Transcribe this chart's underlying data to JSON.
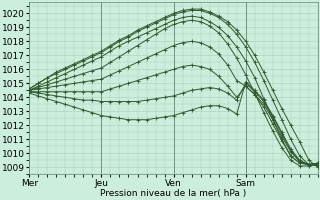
{
  "xlabel": "Pression niveau de la mer( hPa )",
  "bg_color": "#cceedd",
  "grid_color": "#aaccbb",
  "line_color": "#2d5a2d",
  "ylim": [
    1008.5,
    1020.8
  ],
  "yticks": [
    1009,
    1010,
    1011,
    1012,
    1013,
    1014,
    1015,
    1016,
    1017,
    1018,
    1019,
    1020
  ],
  "xlim": [
    0,
    96
  ],
  "xtick_pos": [
    0,
    24,
    48,
    72
  ],
  "xtick_labels": [
    "Mer",
    "Jeu",
    "Ven",
    "Sam"
  ],
  "vline_pos": [
    0,
    24,
    48,
    72
  ],
  "lines": [
    {
      "points": [
        [
          0,
          1014.6
        ],
        [
          3,
          1015.0
        ],
        [
          6,
          1015.4
        ],
        [
          9,
          1015.8
        ],
        [
          12,
          1016.1
        ],
        [
          15,
          1016.4
        ],
        [
          18,
          1016.7
        ],
        [
          21,
          1017.0
        ],
        [
          24,
          1017.3
        ],
        [
          27,
          1017.7
        ],
        [
          30,
          1018.1
        ],
        [
          33,
          1018.4
        ],
        [
          36,
          1018.8
        ],
        [
          39,
          1019.1
        ],
        [
          42,
          1019.4
        ],
        [
          45,
          1019.7
        ],
        [
          48,
          1020.0
        ],
        [
          51,
          1020.2
        ],
        [
          54,
          1020.3
        ],
        [
          57,
          1020.3
        ],
        [
          60,
          1020.1
        ],
        [
          63,
          1019.8
        ],
        [
          66,
          1019.4
        ],
        [
          69,
          1018.8
        ],
        [
          72,
          1018.0
        ],
        [
          75,
          1017.0
        ],
        [
          78,
          1015.8
        ],
        [
          81,
          1014.5
        ],
        [
          84,
          1013.2
        ],
        [
          87,
          1012.0
        ],
        [
          90,
          1010.8
        ],
        [
          93,
          1009.5
        ],
        [
          96,
          1009.0
        ]
      ]
    },
    {
      "points": [
        [
          0,
          1014.6
        ],
        [
          3,
          1015.0
        ],
        [
          6,
          1015.4
        ],
        [
          9,
          1015.7
        ],
        [
          12,
          1016.0
        ],
        [
          15,
          1016.3
        ],
        [
          18,
          1016.6
        ],
        [
          21,
          1016.9
        ],
        [
          24,
          1017.2
        ],
        [
          27,
          1017.6
        ],
        [
          30,
          1018.0
        ],
        [
          33,
          1018.3
        ],
        [
          36,
          1018.7
        ],
        [
          39,
          1019.0
        ],
        [
          42,
          1019.3
        ],
        [
          45,
          1019.6
        ],
        [
          48,
          1019.9
        ],
        [
          51,
          1020.1
        ],
        [
          54,
          1020.2
        ],
        [
          57,
          1020.2
        ],
        [
          60,
          1020.0
        ],
        [
          63,
          1019.7
        ],
        [
          66,
          1019.2
        ],
        [
          69,
          1018.5
        ],
        [
          72,
          1017.6
        ],
        [
          75,
          1016.5
        ],
        [
          78,
          1015.2
        ],
        [
          81,
          1013.8
        ],
        [
          84,
          1012.4
        ],
        [
          87,
          1011.0
        ],
        [
          90,
          1009.8
        ],
        [
          93,
          1009.2
        ],
        [
          96,
          1009.1
        ]
      ]
    },
    {
      "points": [
        [
          0,
          1014.5
        ],
        [
          3,
          1014.8
        ],
        [
          6,
          1015.1
        ],
        [
          9,
          1015.4
        ],
        [
          12,
          1015.7
        ],
        [
          15,
          1016.0
        ],
        [
          18,
          1016.3
        ],
        [
          21,
          1016.6
        ],
        [
          24,
          1016.9
        ],
        [
          27,
          1017.3
        ],
        [
          30,
          1017.7
        ],
        [
          33,
          1018.0
        ],
        [
          36,
          1018.3
        ],
        [
          39,
          1018.6
        ],
        [
          42,
          1018.9
        ],
        [
          45,
          1019.2
        ],
        [
          48,
          1019.5
        ],
        [
          51,
          1019.7
        ],
        [
          54,
          1019.8
        ],
        [
          57,
          1019.7
        ],
        [
          60,
          1019.4
        ],
        [
          63,
          1019.0
        ],
        [
          66,
          1018.4
        ],
        [
          69,
          1017.6
        ],
        [
          72,
          1016.6
        ],
        [
          75,
          1015.4
        ],
        [
          78,
          1013.9
        ],
        [
          81,
          1012.4
        ],
        [
          84,
          1011.0
        ],
        [
          87,
          1009.8
        ],
        [
          90,
          1009.3
        ],
        [
          93,
          1009.2
        ],
        [
          96,
          1009.2
        ]
      ]
    },
    {
      "points": [
        [
          0,
          1014.5
        ],
        [
          3,
          1014.7
        ],
        [
          6,
          1014.9
        ],
        [
          9,
          1015.1
        ],
        [
          12,
          1015.3
        ],
        [
          15,
          1015.5
        ],
        [
          18,
          1015.7
        ],
        [
          21,
          1015.9
        ],
        [
          24,
          1016.1
        ],
        [
          27,
          1016.5
        ],
        [
          30,
          1016.9
        ],
        [
          33,
          1017.3
        ],
        [
          36,
          1017.7
        ],
        [
          39,
          1018.1
        ],
        [
          42,
          1018.5
        ],
        [
          45,
          1018.9
        ],
        [
          48,
          1019.2
        ],
        [
          51,
          1019.4
        ],
        [
          54,
          1019.5
        ],
        [
          57,
          1019.4
        ],
        [
          60,
          1019.1
        ],
        [
          63,
          1018.6
        ],
        [
          66,
          1017.8
        ],
        [
          69,
          1016.8
        ],
        [
          72,
          1015.6
        ],
        [
          75,
          1014.3
        ],
        [
          78,
          1012.9
        ],
        [
          81,
          1011.6
        ],
        [
          84,
          1010.4
        ],
        [
          87,
          1009.5
        ],
        [
          90,
          1009.1
        ],
        [
          93,
          1009.1
        ],
        [
          96,
          1009.2
        ]
      ]
    },
    {
      "points": [
        [
          0,
          1014.5
        ],
        [
          3,
          1014.6
        ],
        [
          6,
          1014.7
        ],
        [
          9,
          1014.8
        ],
        [
          12,
          1014.9
        ],
        [
          15,
          1015.0
        ],
        [
          18,
          1015.1
        ],
        [
          21,
          1015.2
        ],
        [
          24,
          1015.3
        ],
        [
          27,
          1015.6
        ],
        [
          30,
          1015.9
        ],
        [
          33,
          1016.2
        ],
        [
          36,
          1016.5
        ],
        [
          39,
          1016.8
        ],
        [
          42,
          1017.1
        ],
        [
          45,
          1017.4
        ],
        [
          48,
          1017.7
        ],
        [
          51,
          1017.9
        ],
        [
          54,
          1018.0
        ],
        [
          57,
          1017.9
        ],
        [
          60,
          1017.6
        ],
        [
          63,
          1017.1
        ],
        [
          66,
          1016.3
        ],
        [
          69,
          1015.2
        ],
        [
          72,
          1014.8
        ],
        [
          75,
          1014.2
        ],
        [
          78,
          1013.3
        ],
        [
          81,
          1012.1
        ],
        [
          84,
          1010.9
        ],
        [
          87,
          1009.8
        ],
        [
          90,
          1009.3
        ],
        [
          93,
          1009.2
        ],
        [
          96,
          1009.3
        ]
      ]
    },
    {
      "points": [
        [
          0,
          1014.4
        ],
        [
          3,
          1014.4
        ],
        [
          6,
          1014.4
        ],
        [
          9,
          1014.4
        ],
        [
          12,
          1014.4
        ],
        [
          15,
          1014.4
        ],
        [
          18,
          1014.4
        ],
        [
          21,
          1014.4
        ],
        [
          24,
          1014.4
        ],
        [
          27,
          1014.6
        ],
        [
          30,
          1014.8
        ],
        [
          33,
          1015.0
        ],
        [
          36,
          1015.2
        ],
        [
          39,
          1015.4
        ],
        [
          42,
          1015.6
        ],
        [
          45,
          1015.8
        ],
        [
          48,
          1016.0
        ],
        [
          51,
          1016.2
        ],
        [
          54,
          1016.3
        ],
        [
          57,
          1016.2
        ],
        [
          60,
          1016.0
        ],
        [
          63,
          1015.5
        ],
        [
          66,
          1014.8
        ],
        [
          69,
          1014.0
        ],
        [
          72,
          1014.8
        ],
        [
          75,
          1014.2
        ],
        [
          78,
          1013.5
        ],
        [
          81,
          1012.4
        ],
        [
          84,
          1011.2
        ],
        [
          87,
          1010.1
        ],
        [
          90,
          1009.4
        ],
        [
          93,
          1009.2
        ],
        [
          96,
          1009.3
        ]
      ]
    },
    {
      "points": [
        [
          0,
          1014.4
        ],
        [
          3,
          1014.3
        ],
        [
          6,
          1014.2
        ],
        [
          9,
          1014.1
        ],
        [
          12,
          1014.0
        ],
        [
          15,
          1013.9
        ],
        [
          18,
          1013.8
        ],
        [
          21,
          1013.8
        ],
        [
          24,
          1013.7
        ],
        [
          27,
          1013.7
        ],
        [
          30,
          1013.7
        ],
        [
          33,
          1013.7
        ],
        [
          36,
          1013.7
        ],
        [
          39,
          1013.8
        ],
        [
          42,
          1013.9
        ],
        [
          45,
          1014.0
        ],
        [
          48,
          1014.1
        ],
        [
          51,
          1014.3
        ],
        [
          54,
          1014.5
        ],
        [
          57,
          1014.6
        ],
        [
          60,
          1014.7
        ],
        [
          63,
          1014.6
        ],
        [
          66,
          1014.3
        ],
        [
          69,
          1013.8
        ],
        [
          72,
          1015.0
        ],
        [
          75,
          1014.4
        ],
        [
          78,
          1013.7
        ],
        [
          81,
          1012.6
        ],
        [
          84,
          1011.4
        ],
        [
          87,
          1010.2
        ],
        [
          90,
          1009.4
        ],
        [
          93,
          1009.2
        ],
        [
          96,
          1009.3
        ]
      ]
    },
    {
      "points": [
        [
          0,
          1014.3
        ],
        [
          3,
          1014.1
        ],
        [
          6,
          1013.9
        ],
        [
          9,
          1013.7
        ],
        [
          12,
          1013.5
        ],
        [
          15,
          1013.3
        ],
        [
          18,
          1013.1
        ],
        [
          21,
          1012.9
        ],
        [
          24,
          1012.7
        ],
        [
          27,
          1012.6
        ],
        [
          30,
          1012.5
        ],
        [
          33,
          1012.4
        ],
        [
          36,
          1012.4
        ],
        [
          39,
          1012.4
        ],
        [
          42,
          1012.5
        ],
        [
          45,
          1012.6
        ],
        [
          48,
          1012.7
        ],
        [
          51,
          1012.9
        ],
        [
          54,
          1013.1
        ],
        [
          57,
          1013.3
        ],
        [
          60,
          1013.4
        ],
        [
          63,
          1013.4
        ],
        [
          66,
          1013.2
        ],
        [
          69,
          1012.8
        ],
        [
          72,
          1015.1
        ],
        [
          75,
          1014.5
        ],
        [
          78,
          1013.8
        ],
        [
          81,
          1012.7
        ],
        [
          84,
          1011.5
        ],
        [
          87,
          1010.3
        ],
        [
          90,
          1009.5
        ],
        [
          93,
          1009.2
        ],
        [
          96,
          1009.3
        ]
      ]
    }
  ]
}
